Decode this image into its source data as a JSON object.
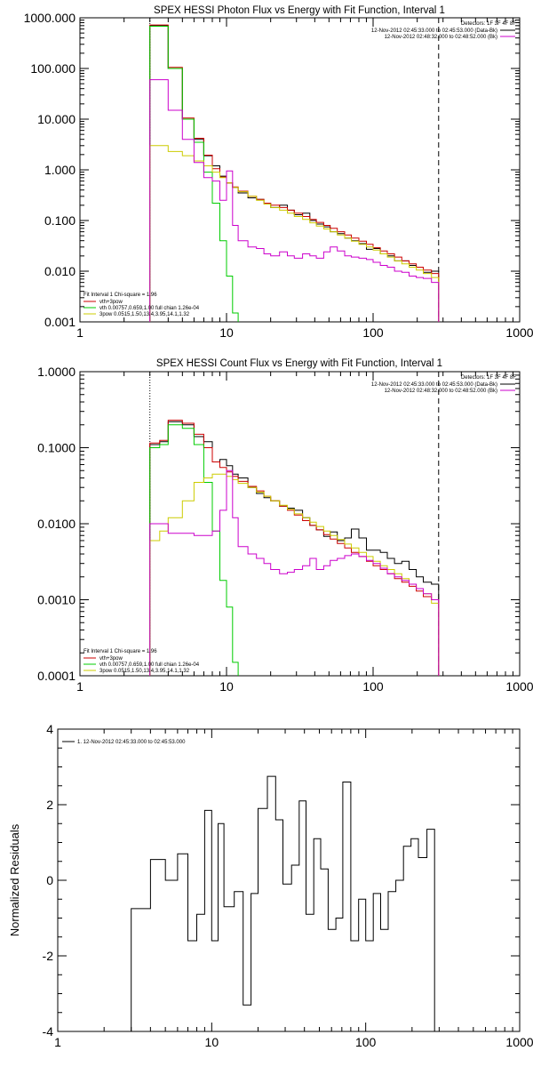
{
  "chart_data": [
    {
      "type": "line",
      "title": "SPEX HESSI Photon Flux vs Energy with Fit Function, Interval 1",
      "ylabel": "",
      "xlim": [
        1,
        1000
      ],
      "ylim": [
        0.001,
        1000
      ],
      "xscale": "log",
      "yscale": "log",
      "x_ticks": [
        "1",
        "10",
        "100",
        "1000"
      ],
      "y_ticks": [
        "0.001",
        "0.010",
        "0.100",
        "1.000",
        "10.000",
        "100.000",
        "1000.000"
      ],
      "vlines": [
        {
          "x": 3,
          "style": "dotted"
        },
        {
          "x": 280,
          "style": "dashed"
        }
      ],
      "legend_right_header": "Detectors: 1F 3F 4F 8F",
      "legend_right": [
        {
          "text": "12-Nov-2012 02:45:33.000 to 02:45:53.000 (Data-Bk)",
          "color": "#000000"
        },
        {
          "text": "12-Nov-2012 02:48:32.000 to 02:48:52.000 (Bk)",
          "color": "#cc00cc"
        }
      ],
      "legend_left_header": "Fit Interval 1    Chi-square = 1.96",
      "legend_left": [
        {
          "text": "vth+3pow",
          "color": "#cc0000"
        },
        {
          "text": "vth 0.00757,0.659,1.00  full chian 1.26e-04",
          "color": "#00cc00"
        },
        {
          "text": "3pow 0.0515,1.50,13.4,3.95,14.1,1.32",
          "color": "#cccc00"
        }
      ],
      "edges": [
        3,
        3.5,
        4,
        5,
        6,
        7,
        8,
        9,
        10,
        11,
        12,
        14,
        16,
        18,
        20,
        23,
        26,
        29,
        33,
        37,
        41,
        46,
        51,
        57,
        64,
        71,
        80,
        90,
        100,
        112,
        125,
        140,
        157,
        176,
        197,
        220,
        250,
        280
      ],
      "series": [
        {
          "color": "#000000",
          "values": [
            700,
            700,
            100,
            10,
            4,
            1.9,
            1.2,
            0.75,
            0.55,
            0.45,
            0.35,
            0.28,
            0.26,
            0.22,
            0.18,
            0.2,
            0.16,
            0.13,
            0.14,
            0.1,
            0.085,
            0.075,
            0.06,
            0.055,
            0.045,
            0.04,
            0.035,
            0.027,
            0.028,
            0.022,
            0.02,
            0.016,
            0.016,
            0.013,
            0.012,
            0.0095,
            0.01
          ]
        },
        {
          "color": "#cc0000",
          "values": [
            720,
            720,
            105,
            10.5,
            4.2,
            1.95,
            1.05,
            0.72,
            0.55,
            0.46,
            0.38,
            0.3,
            0.26,
            0.22,
            0.2,
            0.18,
            0.16,
            0.14,
            0.12,
            0.105,
            0.092,
            0.08,
            0.07,
            0.06,
            0.052,
            0.045,
            0.039,
            0.034,
            0.029,
            0.025,
            0.022,
            0.019,
            0.016,
            0.014,
            0.012,
            0.0105,
            0.009
          ]
        },
        {
          "color": "#00cc00",
          "values": [
            680,
            680,
            100,
            10,
            3.5,
            0.9,
            0.22,
            0.04,
            0.008,
            0.0015
          ]
        },
        {
          "color": "#cccc00",
          "values": [
            3,
            3,
            2.3,
            1.9,
            1.5,
            1.2,
            0.9,
            0.7,
            0.55,
            0.45,
            0.37,
            0.3,
            0.25,
            0.21,
            0.18,
            0.16,
            0.14,
            0.12,
            0.105,
            0.09,
            0.078,
            0.068,
            0.06,
            0.052,
            0.045,
            0.039,
            0.034,
            0.03,
            0.026,
            0.022,
            0.019,
            0.016,
            0.014,
            0.012,
            0.0105,
            0.009,
            0.0075
          ]
        },
        {
          "color": "#cc00cc",
          "values": [
            60,
            60,
            15,
            4,
            1.4,
            0.7,
            0.6,
            0.25,
            0.95,
            0.08,
            0.04,
            0.03,
            0.028,
            0.022,
            0.02,
            0.024,
            0.02,
            0.018,
            0.022,
            0.02,
            0.018,
            0.024,
            0.03,
            0.025,
            0.02,
            0.019,
            0.018,
            0.017,
            0.015,
            0.013,
            0.012,
            0.01,
            0.0095,
            0.008,
            0.0075,
            0.0072,
            0.006
          ]
        }
      ]
    },
    {
      "type": "line",
      "title": "SPEX HESSI Count Flux vs Energy with Fit Function, Interval 1",
      "ylabel": "",
      "xlim": [
        1,
        1000
      ],
      "ylim": [
        0.0001,
        1
      ],
      "xscale": "log",
      "yscale": "log",
      "x_ticks": [
        "1",
        "10",
        "100",
        "1000"
      ],
      "y_ticks": [
        "0.0001",
        "0.0010",
        "0.0100",
        "0.1000",
        "1.0000"
      ],
      "vlines": [
        {
          "x": 3,
          "style": "dotted"
        },
        {
          "x": 280,
          "style": "dashed"
        }
      ],
      "legend_right_header": "Detectors: 1F 3F 4F 8F",
      "legend_right": [
        {
          "text": "12-Nov-2012 02:45:33.000 to 02:45:53.000 (Data-Bk)",
          "color": "#000000"
        },
        {
          "text": "12-Nov-2012 02:48:32.000 to 02:48:52.000 (Bk)",
          "color": "#cc00cc"
        }
      ],
      "legend_left_header": "Fit Interval 1    Chi-square = 1.96",
      "legend_left": [
        {
          "text": "vth+3pow",
          "color": "#cc0000"
        },
        {
          "text": "vth 0.00757,0.659,1.00  full chian 1.26e-04",
          "color": "#00cc00"
        },
        {
          "text": "3pow 0.0515,1.50,13.4,3.95,14.1,1.32",
          "color": "#cccc00"
        }
      ],
      "edges": [
        3,
        3.5,
        4,
        5,
        6,
        7,
        8,
        9,
        10,
        11,
        12,
        14,
        16,
        18,
        20,
        23,
        26,
        29,
        33,
        37,
        41,
        46,
        51,
        57,
        64,
        71,
        80,
        90,
        100,
        112,
        125,
        140,
        157,
        176,
        197,
        220,
        250,
        280
      ],
      "series": [
        {
          "color": "#000000",
          "values": [
            0.11,
            0.12,
            0.22,
            0.2,
            0.14,
            0.12,
            0.065,
            0.07,
            0.058,
            0.045,
            0.04,
            0.03,
            0.025,
            0.022,
            0.02,
            0.017,
            0.016,
            0.015,
            0.012,
            0.0095,
            0.0083,
            0.0068,
            0.0078,
            0.006,
            0.0065,
            0.0085,
            0.0065,
            0.0045,
            0.0045,
            0.0042,
            0.0035,
            0.003,
            0.0032,
            0.0025,
            0.002,
            0.0017,
            0.0016
          ]
        },
        {
          "color": "#cc0000",
          "values": [
            0.115,
            0.125,
            0.23,
            0.21,
            0.15,
            0.1,
            0.065,
            0.055,
            0.048,
            0.042,
            0.036,
            0.031,
            0.027,
            0.023,
            0.02,
            0.017,
            0.015,
            0.013,
            0.011,
            0.0095,
            0.0083,
            0.0072,
            0.0063,
            0.0055,
            0.0048,
            0.0042,
            0.0037,
            0.0032,
            0.0028,
            0.0025,
            0.0022,
            0.0019,
            0.0017,
            0.0015,
            0.0013,
            0.0011,
            0.001
          ]
        },
        {
          "color": "#00cc00",
          "values": [
            0.1,
            0.11,
            0.2,
            0.18,
            0.11,
            0.035,
            0.008,
            0.0018,
            0.0008,
            0.00015
          ]
        },
        {
          "color": "#cccc00",
          "values": [
            0.006,
            0.008,
            0.012,
            0.02,
            0.035,
            0.04,
            0.045,
            0.045,
            0.042,
            0.038,
            0.034,
            0.03,
            0.026,
            0.023,
            0.02,
            0.0175,
            0.0155,
            0.0135,
            0.012,
            0.0105,
            0.0092,
            0.008,
            0.007,
            0.0062,
            0.0054,
            0.0048,
            0.0042,
            0.0037,
            0.0032,
            0.0028,
            0.0025,
            0.0022,
            0.0019,
            0.0016,
            0.0014,
            0.0012,
            0.0009
          ]
        },
        {
          "color": "#cc00cc",
          "values": [
            0.01,
            0.01,
            0.0075,
            0.0075,
            0.007,
            0.007,
            0.008,
            0.015,
            0.05,
            0.012,
            0.005,
            0.004,
            0.0035,
            0.003,
            0.0025,
            0.0022,
            0.0023,
            0.0025,
            0.0028,
            0.0035,
            0.0025,
            0.0028,
            0.0033,
            0.0035,
            0.0038,
            0.004,
            0.0037,
            0.0033,
            0.003,
            0.0026,
            0.0022,
            0.002,
            0.0018,
            0.0016,
            0.0014,
            0.0012,
            0.001
          ]
        }
      ]
    },
    {
      "type": "line",
      "title": "",
      "ylabel": "Normalized Residuals",
      "xlim": [
        1,
        1000
      ],
      "ylim": [
        -4,
        4
      ],
      "xscale": "log",
      "yscale": "linear",
      "x_ticks": [
        "1",
        "10",
        "100",
        "1000"
      ],
      "y_ticks": [
        "-4",
        "-2",
        "0",
        "2",
        "4"
      ],
      "legend": "1. 12-Nov-2012 02:45:33.000 to 02:45:53.000",
      "edges": [
        3,
        3.5,
        4,
        5,
        6,
        7,
        8,
        9,
        10,
        11,
        12,
        14,
        16,
        18,
        20,
        23,
        26,
        29,
        33,
        37,
        41,
        46,
        51,
        57,
        64,
        71,
        80,
        90,
        100,
        112,
        125,
        140,
        157,
        176,
        197,
        220,
        250,
        280
      ],
      "series": [
        {
          "color": "#000000",
          "values": [
            -0.75,
            -0.75,
            0.55,
            0.0,
            0.7,
            -1.6,
            -0.9,
            1.85,
            -1.6,
            1.5,
            -0.7,
            -0.3,
            -3.3,
            -0.35,
            1.9,
            2.75,
            1.6,
            -0.1,
            0.4,
            2.1,
            -0.9,
            1.1,
            0.3,
            -1.3,
            -1.0,
            2.6,
            -1.6,
            -0.5,
            -1.6,
            -0.35,
            -1.3,
            -0.3,
            0.0,
            0.9,
            1.1,
            0.6,
            1.35
          ]
        }
      ]
    }
  ]
}
